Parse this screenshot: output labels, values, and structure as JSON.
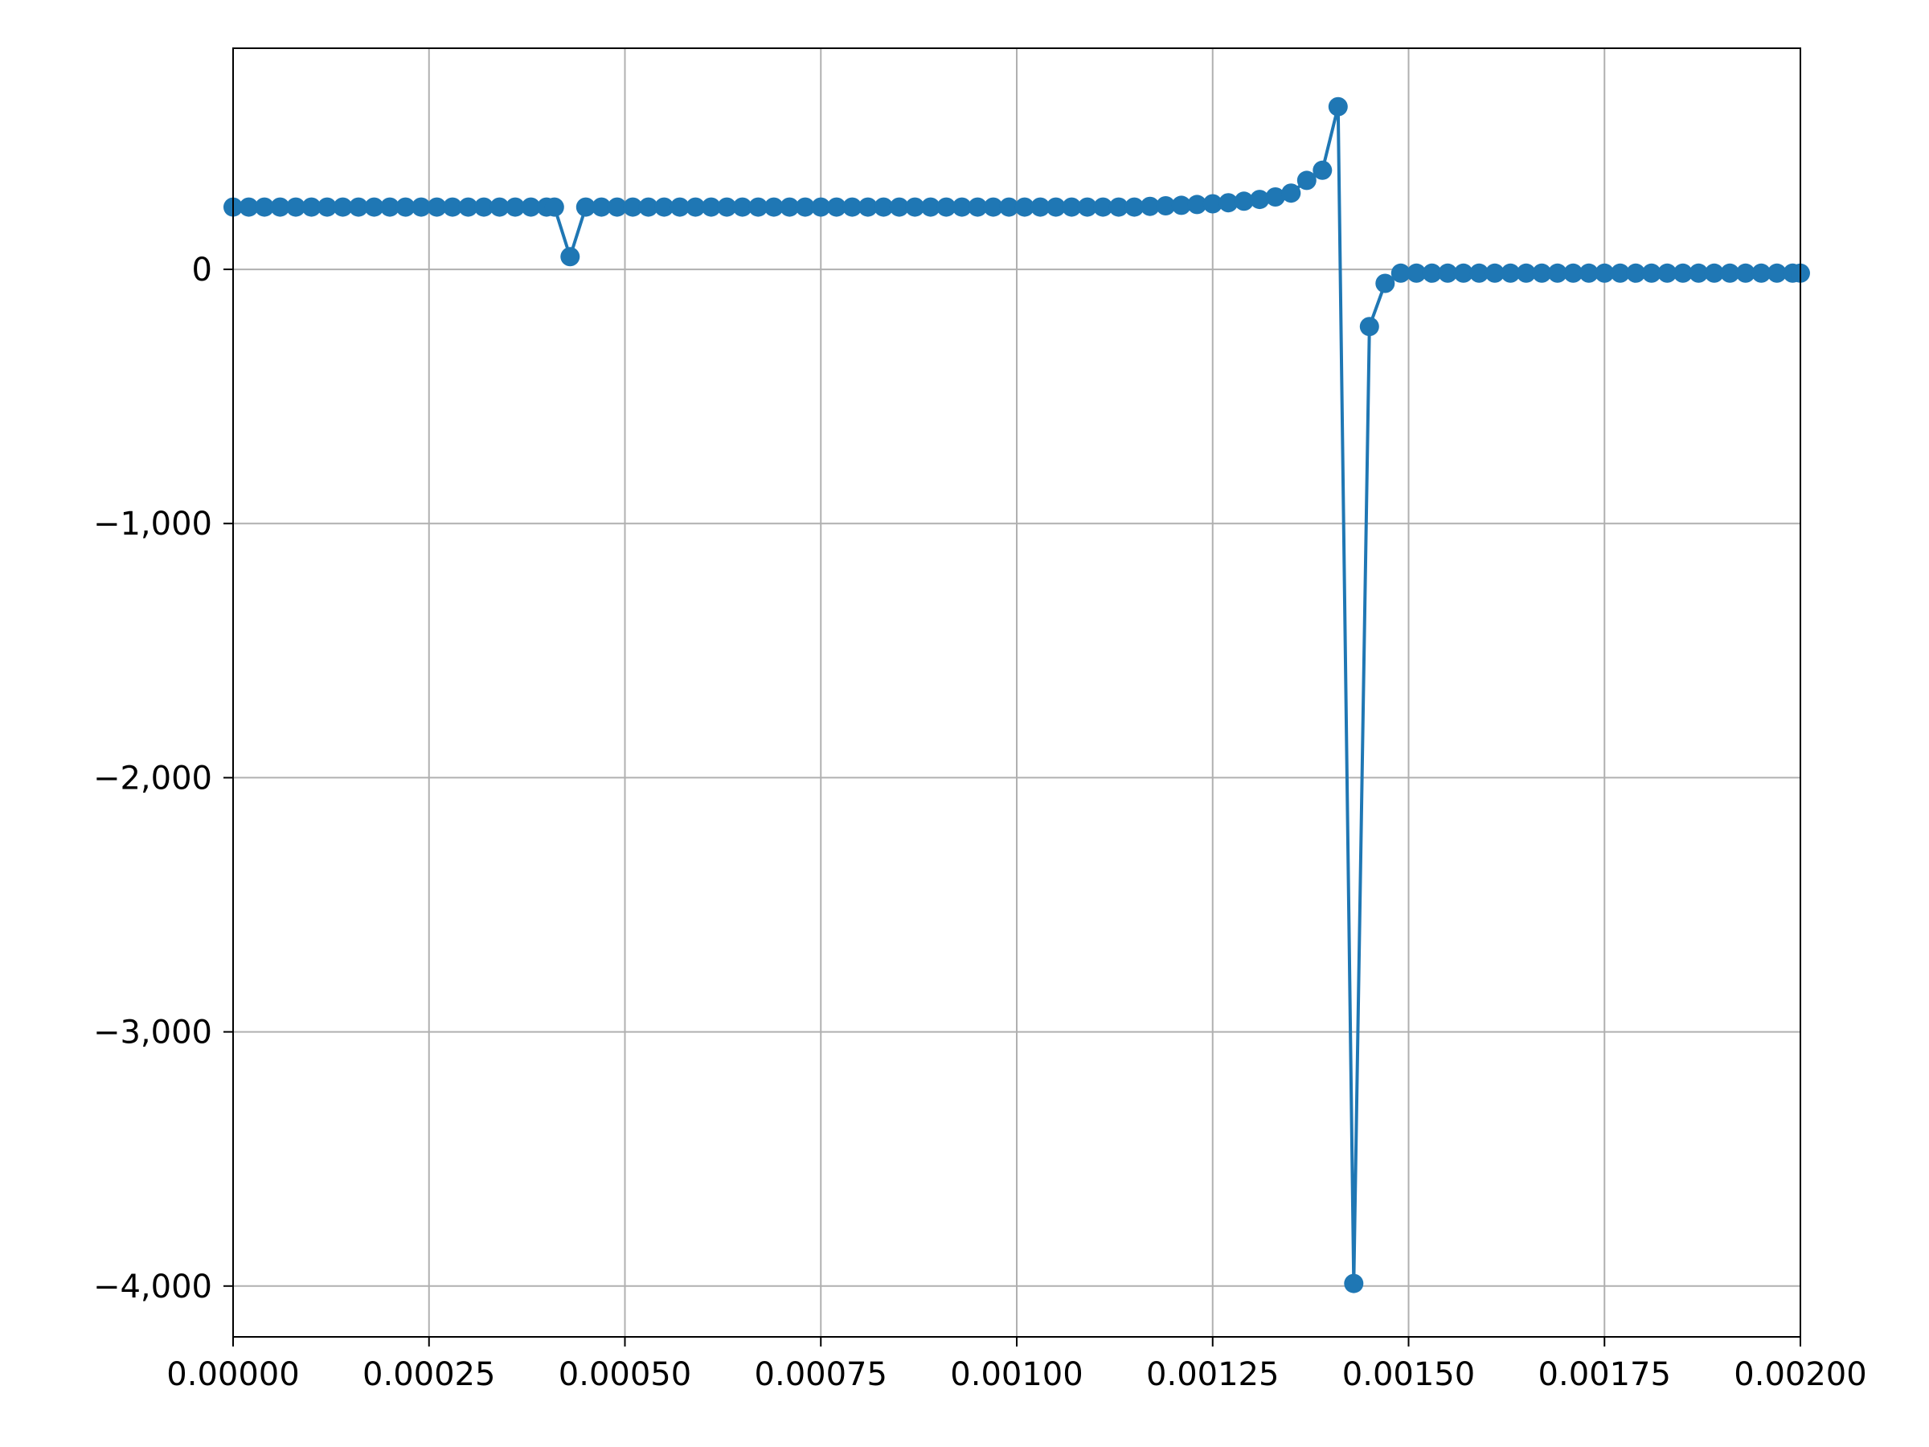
{
  "chart_data": {
    "type": "line",
    "title": "",
    "xlabel": "",
    "ylabel": "",
    "xlim": [
      0,
      0.002
    ],
    "ylim": [
      -4200,
      870
    ],
    "grid": true,
    "colors": {
      "series": "#1f77b4",
      "grid": "#b0b0b0",
      "axes": "#000000"
    },
    "x_ticks": [
      {
        "value": 0.0,
        "label": "0.00000"
      },
      {
        "value": 0.00025,
        "label": "0.00025"
      },
      {
        "value": 0.0005,
        "label": "0.00050"
      },
      {
        "value": 0.00075,
        "label": "0.00075"
      },
      {
        "value": 0.001,
        "label": "0.00100"
      },
      {
        "value": 0.00125,
        "label": "0.00125"
      },
      {
        "value": 0.0015,
        "label": "0.00150"
      },
      {
        "value": 0.00175,
        "label": "0.00175"
      },
      {
        "value": 0.002,
        "label": "0.00200"
      }
    ],
    "y_ticks": [
      {
        "value": 0,
        "label": "0"
      },
      {
        "value": -1000,
        "label": "−1,000"
      },
      {
        "value": -2000,
        "label": "−2,000"
      },
      {
        "value": -3000,
        "label": "−3,000"
      },
      {
        "value": -4000,
        "label": "−4,000"
      }
    ],
    "series": [
      {
        "x": [
          0.0,
          2e-05,
          4e-05,
          6e-05,
          8e-05,
          0.0001,
          0.00012,
          0.00014,
          0.00016,
          0.00018,
          0.0002,
          0.00022,
          0.00024,
          0.00026,
          0.00028,
          0.0003,
          0.00032,
          0.00034,
          0.00036,
          0.00038,
          0.0004,
          0.00041,
          0.00043,
          0.00045,
          0.00047,
          0.00049,
          0.00051,
          0.00053,
          0.00055,
          0.00057,
          0.00059,
          0.00061,
          0.00063,
          0.00065,
          0.00067,
          0.00069,
          0.00071,
          0.00073,
          0.00075,
          0.00077,
          0.00079,
          0.00081,
          0.00083,
          0.00085,
          0.00087,
          0.00089,
          0.00091,
          0.00093,
          0.00095,
          0.00097,
          0.00099,
          0.00101,
          0.00103,
          0.00105,
          0.00107,
          0.00109,
          0.00111,
          0.00113,
          0.00115,
          0.00117,
          0.00119,
          0.00121,
          0.00123,
          0.00125,
          0.00127,
          0.00129,
          0.00131,
          0.00133,
          0.00135,
          0.00137,
          0.00139,
          0.00141,
          0.00143,
          0.00145,
          0.00147,
          0.00149,
          0.00151,
          0.00153,
          0.00155,
          0.00157,
          0.00159,
          0.00161,
          0.00163,
          0.00165,
          0.00167,
          0.00169,
          0.00171,
          0.00173,
          0.00175,
          0.00177,
          0.00179,
          0.00181,
          0.00183,
          0.00185,
          0.00187,
          0.00189,
          0.00191,
          0.00193,
          0.00195,
          0.00197,
          0.00199,
          0.002
        ],
        "y": [
          245,
          245,
          245,
          245,
          245,
          245,
          245,
          245,
          245,
          245,
          245,
          245,
          245,
          245,
          245,
          245,
          245,
          245,
          245,
          245,
          245,
          245,
          50,
          245,
          245,
          245,
          245,
          245,
          245,
          245,
          245,
          245,
          245,
          245,
          245,
          245,
          245,
          245,
          245,
          245,
          245,
          245,
          245,
          245,
          245,
          245,
          245,
          245,
          245,
          245,
          245,
          245,
          245,
          245,
          245,
          245,
          245,
          245,
          245,
          248,
          250,
          252,
          255,
          258,
          262,
          268,
          275,
          285,
          300,
          350,
          390,
          640,
          -3990,
          -225,
          -55,
          -15,
          -15,
          -15,
          -15,
          -15,
          -15,
          -15,
          -15,
          -15,
          -15,
          -15,
          -15,
          -15,
          -15,
          -15,
          -15,
          -15,
          -15,
          -15,
          -15,
          -15,
          -15,
          -15,
          -15,
          -15,
          -15,
          -15
        ]
      }
    ]
  }
}
